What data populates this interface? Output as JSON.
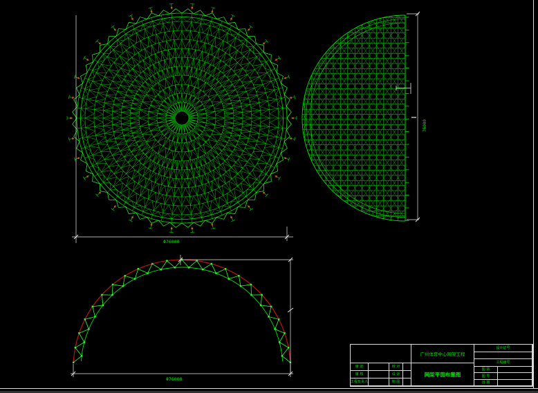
{
  "window": {
    "background": "#000000"
  },
  "colors": {
    "green": "#00DE00",
    "bright_green": "#2BFF2B",
    "dim_green": "#00B400",
    "red": "#BB1414",
    "orange": "#D4581E",
    "white": "#E8E8E8",
    "text_green": "#00E000"
  },
  "views": {
    "plan": {
      "label": "dome space-frame roof plan",
      "rings": 11,
      "sectors": 64,
      "rim_teeth": 56,
      "supports": 34,
      "dim_text": "Φ76000"
    },
    "elevation": {
      "label": "dome side elevation",
      "levels": 40,
      "columns": 15,
      "edge_stubs": 17,
      "dim_text": "76000"
    },
    "arch": {
      "label": "arch truss section",
      "panels": 44,
      "dim_text": "Φ76000"
    }
  },
  "title_block": {
    "project_name": "广州体育中心网架工程",
    "drawing_name": "网架平面布置图",
    "left_rows": [
      [
        "审 定",
        "校 对"
      ],
      [
        "审 核",
        "设 计"
      ],
      [
        "工程负责人",
        "制 图"
      ]
    ],
    "right": {
      "cert_label": "设计证号",
      "project_no_label": "工程编号",
      "rows": [
        [
          "图 别",
          ""
        ],
        [
          "图 号",
          ""
        ],
        [
          "日 期",
          ""
        ]
      ]
    }
  }
}
